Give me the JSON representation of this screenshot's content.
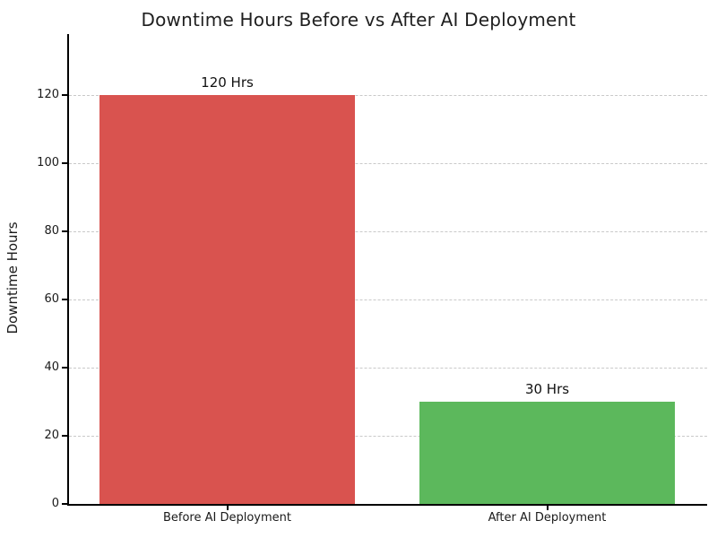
{
  "chart_data": {
    "type": "bar",
    "title": "Downtime Hours Before vs After AI Deployment",
    "xlabel": "",
    "ylabel": "Downtime Hours",
    "categories": [
      "Before AI Deployment",
      "After AI Deployment"
    ],
    "values": [
      120,
      30
    ],
    "bar_value_labels": [
      "120 Hrs",
      "30 Hrs"
    ],
    "bar_colors": [
      "#d9534f",
      "#5cb85c"
    ],
    "yticks": [
      0,
      20,
      40,
      60,
      80,
      100,
      120
    ],
    "ylim": [
      0,
      138
    ],
    "bar_width_fraction": 0.8,
    "grid": "horizontal-dashed",
    "grid_color": "#c9c9c9",
    "legend_position": "none",
    "background_color": "#ffffff",
    "text_color": "#1a1a1a"
  }
}
